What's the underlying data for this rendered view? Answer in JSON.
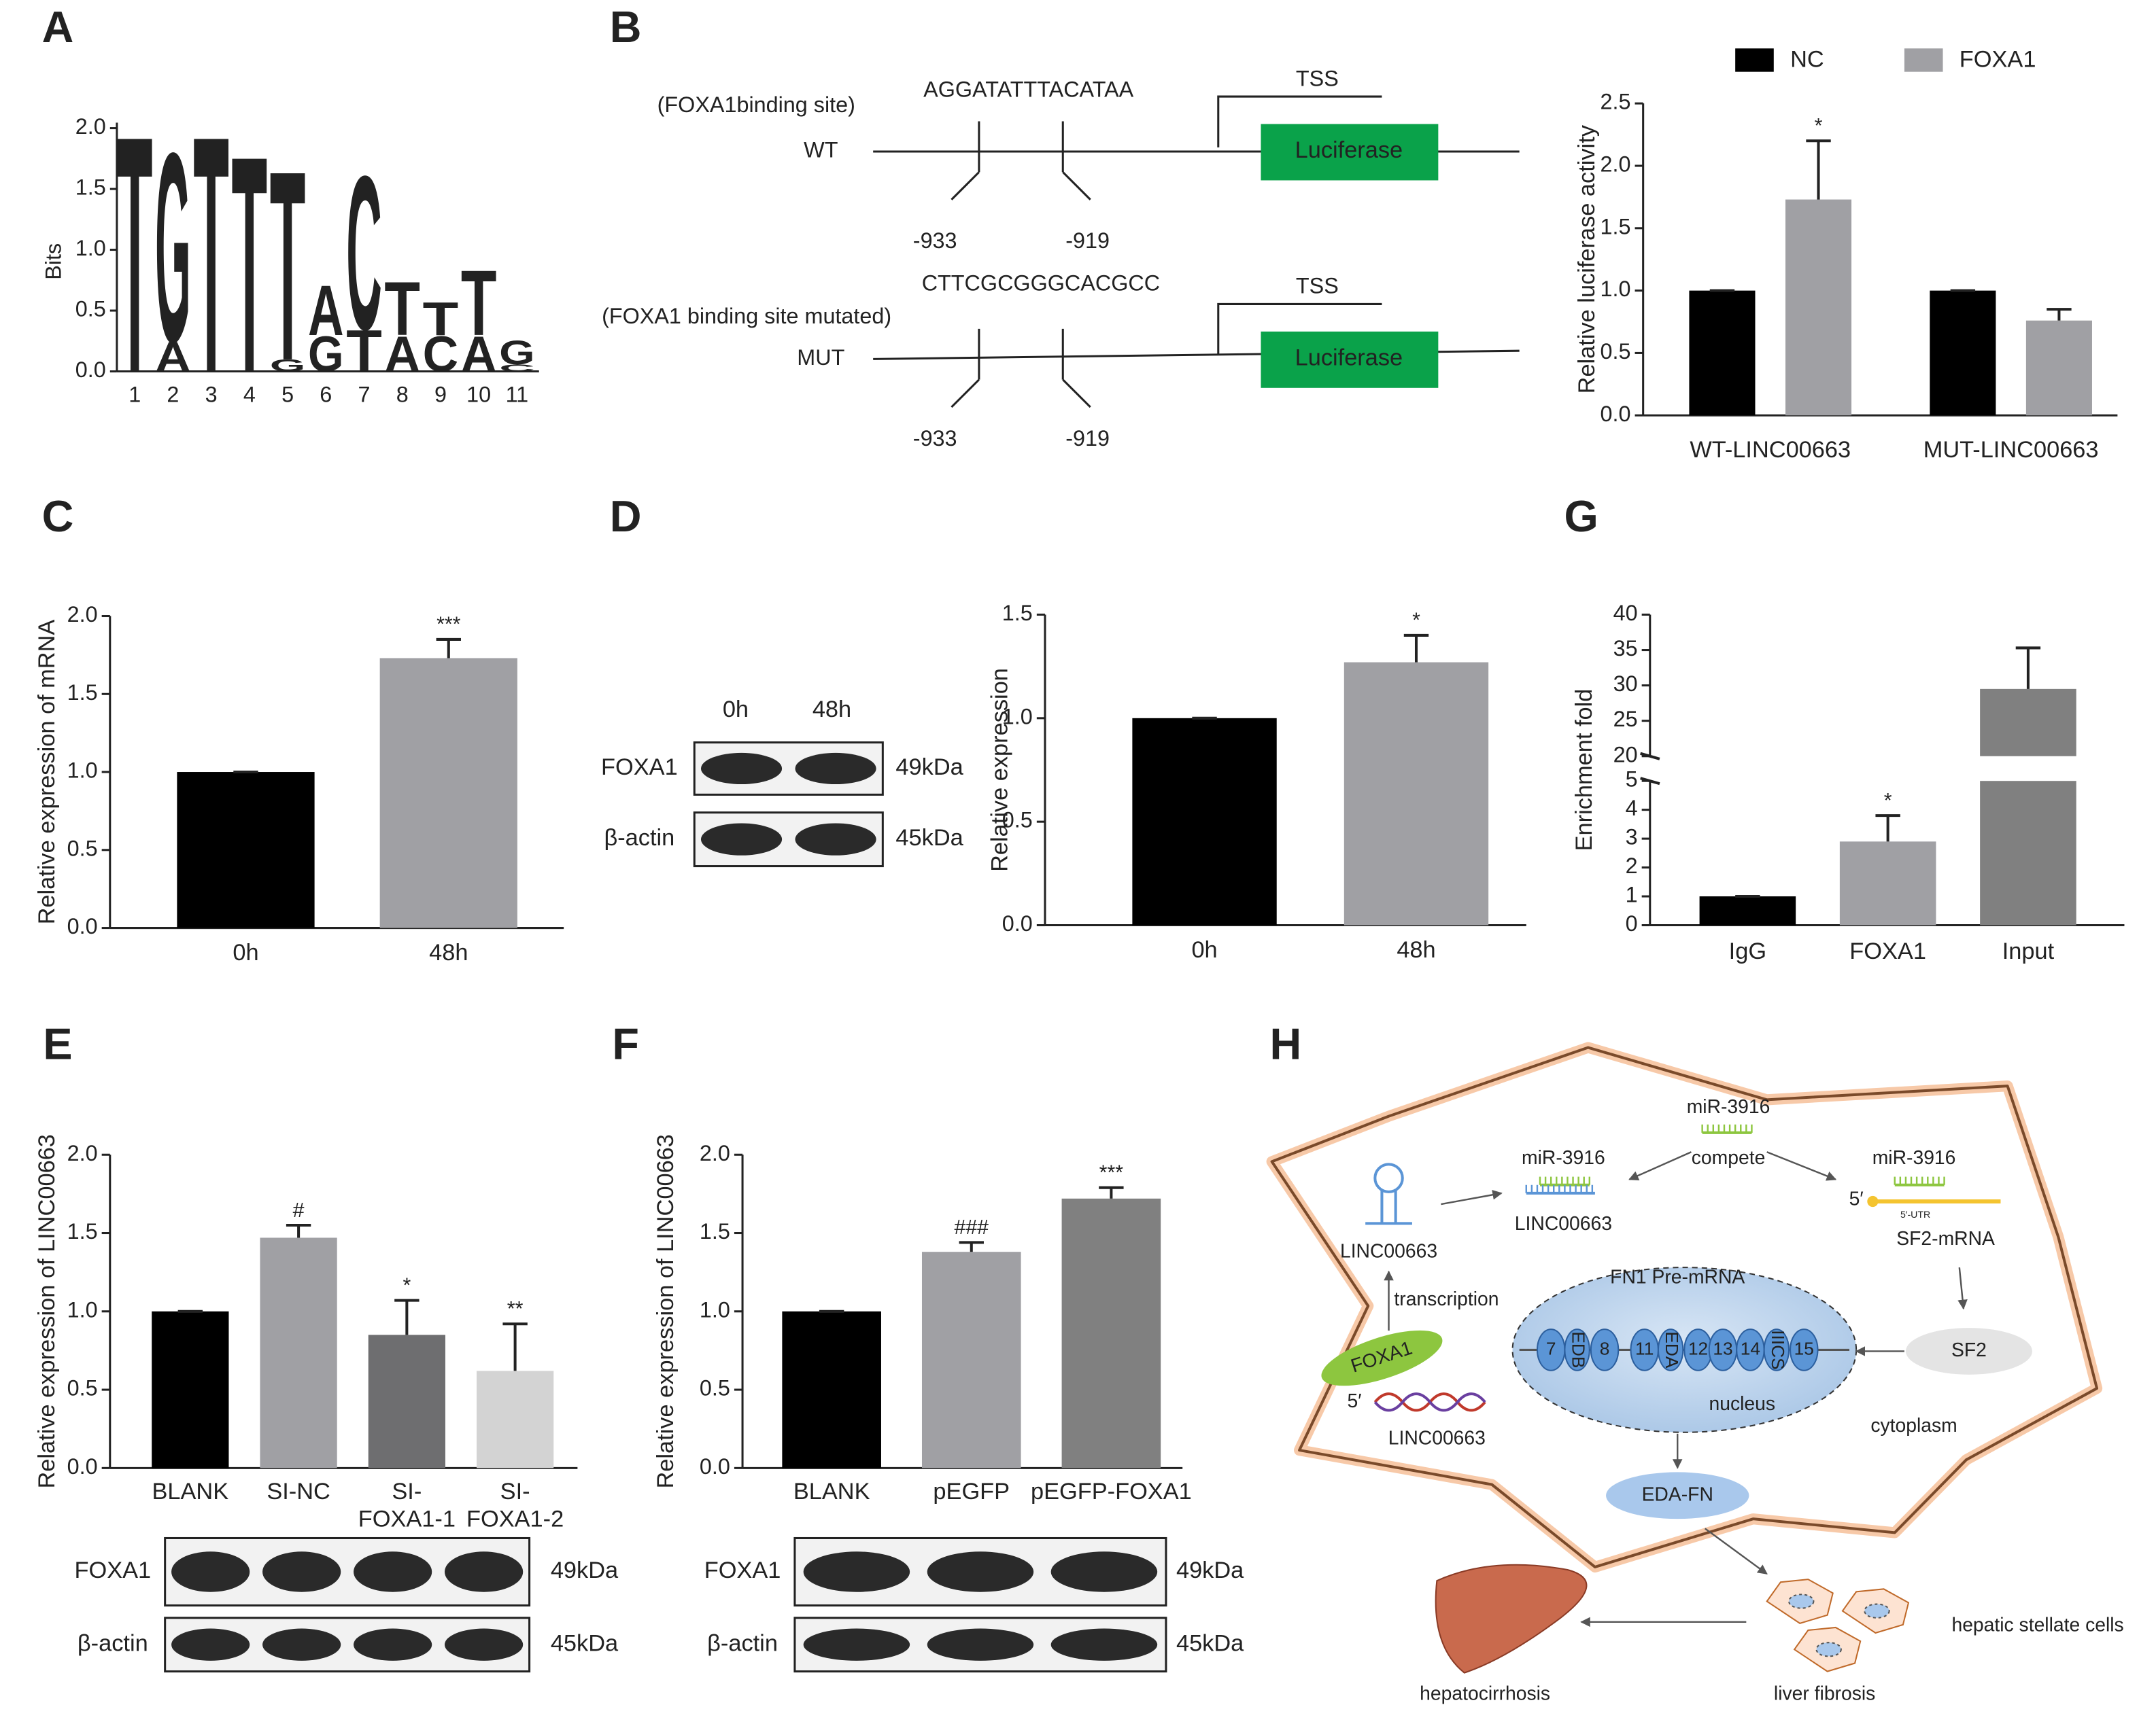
{
  "panel_labels": [
    "A",
    "B",
    "C",
    "D",
    "E",
    "F",
    "G",
    "H"
  ],
  "logo": {
    "ylabel": "Bits",
    "ylim": [
      0,
      2.0
    ],
    "yticks": [
      {
        "value": 0,
        "label": "0.0"
      },
      0.5,
      {
        "value": 1,
        "label": "1.0"
      },
      1.5,
      {
        "value": 2,
        "label": "2.0"
      }
    ],
    "positions": [
      1,
      2,
      3,
      4,
      5,
      6,
      7,
      8,
      9,
      10,
      11
    ],
    "colors": {
      "T": "#d8434a",
      "G": "#f1b134",
      "A": "#2ea44f",
      "C": "#1f7fc0"
    },
    "stacks": [
      [
        {
          "letter": "T",
          "bits": 2.0
        }
      ],
      [
        {
          "letter": "A",
          "bits": 0.25
        },
        {
          "letter": "G",
          "bits": 1.6
        }
      ],
      [
        {
          "letter": "T",
          "bits": 2.0
        }
      ],
      [
        {
          "letter": "T",
          "bits": 1.83
        }
      ],
      [
        {
          "letter": "G",
          "bits": 0.1
        },
        {
          "letter": "T",
          "bits": 1.6
        }
      ],
      [
        {
          "letter": "G",
          "bits": 0.3
        },
        {
          "letter": "A",
          "bits": 0.42
        }
      ],
      [
        {
          "letter": "T",
          "bits": 0.35
        },
        {
          "letter": "C",
          "bits": 1.3
        }
      ],
      [
        {
          "letter": "A",
          "bits": 0.3
        },
        {
          "letter": "T",
          "bits": 0.45
        }
      ],
      [
        {
          "letter": "C",
          "bits": 0.3
        },
        {
          "letter": "T",
          "bits": 0.28
        }
      ],
      [
        {
          "letter": "A",
          "bits": 0.3
        },
        {
          "letter": "T",
          "bits": 0.55
        }
      ],
      [
        {
          "letter": "C",
          "bits": 0.06
        },
        {
          "letter": "G",
          "bits": 0.2
        }
      ]
    ]
  },
  "promoter_diagram": {
    "wt": {
      "site_label": "(FOXA1binding site)",
      "sequence": "AGGATATTTACATAA",
      "row": "WT",
      "tss": "TSS",
      "reporter": "Luciferase",
      "positions": [
        "-933",
        "-919"
      ]
    },
    "mut": {
      "site_label": "(FOXA1 binding site mutated)",
      "sequence": "CTTCGCGGGCACGCC",
      "row": "MUT",
      "tss": "TSS",
      "reporter": "Luciferase",
      "positions": [
        "-933",
        "-919"
      ]
    }
  },
  "blots": [
    {
      "lanes": [
        "0h",
        "48h"
      ],
      "rows": [
        "FOXA1",
        "β-actin"
      ],
      "sizes": [
        "49kDa",
        "45kDa"
      ]
    },
    {
      "rows": [
        "FOXA1",
        "β-actin"
      ],
      "sizes": [
        "49kDa",
        "45kDa"
      ]
    },
    {
      "rows": [
        "FOXA1",
        "β-actin"
      ],
      "sizes": [
        "49kDa",
        "45kDa"
      ]
    }
  ],
  "pathway": {
    "mir_top": "miR-3916",
    "compete": "compete",
    "mir_left": "miR-3916",
    "linc_sponge": "LINC00663",
    "mir_right": "miR-3916",
    "five_prime_mrna": "5′",
    "utr": "5′-UTR",
    "sf2_mrna": "SF2-mRNA",
    "linc_hairpin": "LINC00663",
    "transcription": "transcription",
    "pre_mrna": "FN1 Pre-mRNA",
    "foxa1": "FOXA1",
    "five_prime_dna": "5′",
    "linc_gene": "LINC00663",
    "exons": [
      "7",
      "EDB",
      "8",
      "11",
      "EDA",
      "12",
      "13",
      "14",
      "IIICS",
      "15"
    ],
    "nucleus": "nucleus",
    "cytoplasm": "cytoplasm",
    "sf2": "SF2",
    "eda_fn": "EDA-FN",
    "hsc": "hepatic stellate cells",
    "fibrosis": "liver fibrosis",
    "cirrhosis": "hepatocirrhosis"
  },
  "chart_data": [
    {
      "type": "grouped_bar",
      "ylabel": "Relative luciferase activity",
      "categories": [
        "WT-LINC00663",
        "MUT-LINC00663"
      ],
      "series": [
        {
          "name": "NC",
          "color": "#000000",
          "values": [
            1.0,
            1.0
          ],
          "errors": [
            0,
            0
          ]
        },
        {
          "name": "FOXA1",
          "color": "#a0a0a4",
          "values": [
            1.73,
            0.76
          ],
          "errors": [
            0.47,
            0.09
          ]
        }
      ],
      "annotations": [
        {
          "series": 1,
          "index": 0,
          "text": "*"
        }
      ],
      "ylim": [
        0,
        2.5
      ],
      "yticks": [
        {
          "value": 0,
          "label": "0.0"
        },
        0.5,
        {
          "value": 1,
          "label": "1.0"
        },
        1.5,
        {
          "value": 2,
          "label": "2.0"
        },
        2.5
      ]
    },
    {
      "type": "bar",
      "ylabel": "Relative expression of mRNA",
      "categories": [
        "0h",
        "48h"
      ],
      "values": [
        1.0,
        1.73
      ],
      "errors": [
        0,
        0.12
      ],
      "colors": [
        "#000000",
        "#a0a0a4"
      ],
      "annotations": [
        {
          "index": 1,
          "text": "***"
        }
      ],
      "ylim": [
        0,
        2.0
      ],
      "yticks": [
        {
          "value": 0,
          "label": "0.0"
        },
        0.5,
        {
          "value": 1,
          "label": "1.0"
        },
        1.5,
        {
          "value": 2,
          "label": "2.0"
        }
      ]
    },
    {
      "type": "bar",
      "ylabel": "Relative expression",
      "categories": [
        "0h",
        "48h"
      ],
      "values": [
        1.0,
        1.27
      ],
      "errors": [
        0,
        0.13
      ],
      "colors": [
        "#000000",
        "#a0a0a4"
      ],
      "annotations": [
        {
          "index": 1,
          "text": "*"
        }
      ],
      "ylim": [
        0,
        1.5
      ],
      "yticks": [
        {
          "value": 0,
          "label": "0.0"
        },
        0.5,
        {
          "value": 1,
          "label": "1.0"
        },
        1.5
      ]
    },
    {
      "type": "broken_bar",
      "ylabel": "Enrichment fold",
      "categories": [
        "IgG",
        "FOXA1",
        "Input"
      ],
      "values": [
        1,
        2.9,
        29.5
      ],
      "errors": [
        0,
        0.9,
        5.8
      ],
      "colors": [
        "#000000",
        "#a0a0a4",
        "#808080"
      ],
      "annotations": [
        {
          "index": 1,
          "text": "*"
        }
      ],
      "segments": [
        {
          "ylim": [
            0,
            5
          ],
          "yticks": [
            0,
            1,
            2,
            3,
            4,
            5
          ]
        },
        {
          "ylim": [
            20,
            40
          ],
          "yticks": [
            20,
            25,
            30,
            35,
            40
          ]
        }
      ]
    },
    {
      "type": "bar",
      "ylabel": "Relative expression of LINC00663",
      "categories": [
        "BLANK",
        "SI-NC",
        [
          "SI-",
          "FOXA1-1"
        ],
        [
          "SI-",
          "FOXA1-2"
        ]
      ],
      "values": [
        1.0,
        1.47,
        0.85,
        0.62
      ],
      "errors": [
        0,
        0.08,
        0.22,
        0.3
      ],
      "colors": [
        "#000000",
        "#a0a0a4",
        "#6e6e70",
        "#d3d3d3"
      ],
      "annotations": [
        {
          "index": 1,
          "text": "#"
        },
        {
          "index": 2,
          "text": "*"
        },
        {
          "index": 3,
          "text": "**"
        }
      ],
      "ylim": [
        0,
        2.0
      ],
      "yticks": [
        {
          "value": 0,
          "label": "0.0"
        },
        0.5,
        {
          "value": 1,
          "label": "1.0"
        },
        1.5,
        {
          "value": 2,
          "label": "2.0"
        }
      ]
    },
    {
      "type": "bar",
      "ylabel": "Relative expression of LINC00663",
      "categories": [
        "BLANK",
        "pEGFP",
        "pEGFP-FOXA1"
      ],
      "values": [
        1.0,
        1.38,
        1.72
      ],
      "errors": [
        0,
        0.06,
        0.07
      ],
      "colors": [
        "#000000",
        "#a0a0a4",
        "#808080"
      ],
      "annotations": [
        {
          "index": 1,
          "text": "###"
        },
        {
          "index": 2,
          "text": "***"
        }
      ],
      "ylim": [
        0,
        2.0
      ],
      "yticks": [
        {
          "value": 0,
          "label": "0.0"
        },
        0.5,
        {
          "value": 1,
          "label": "1.0"
        },
        1.5,
        {
          "value": 2,
          "label": "2.0"
        }
      ]
    }
  ]
}
